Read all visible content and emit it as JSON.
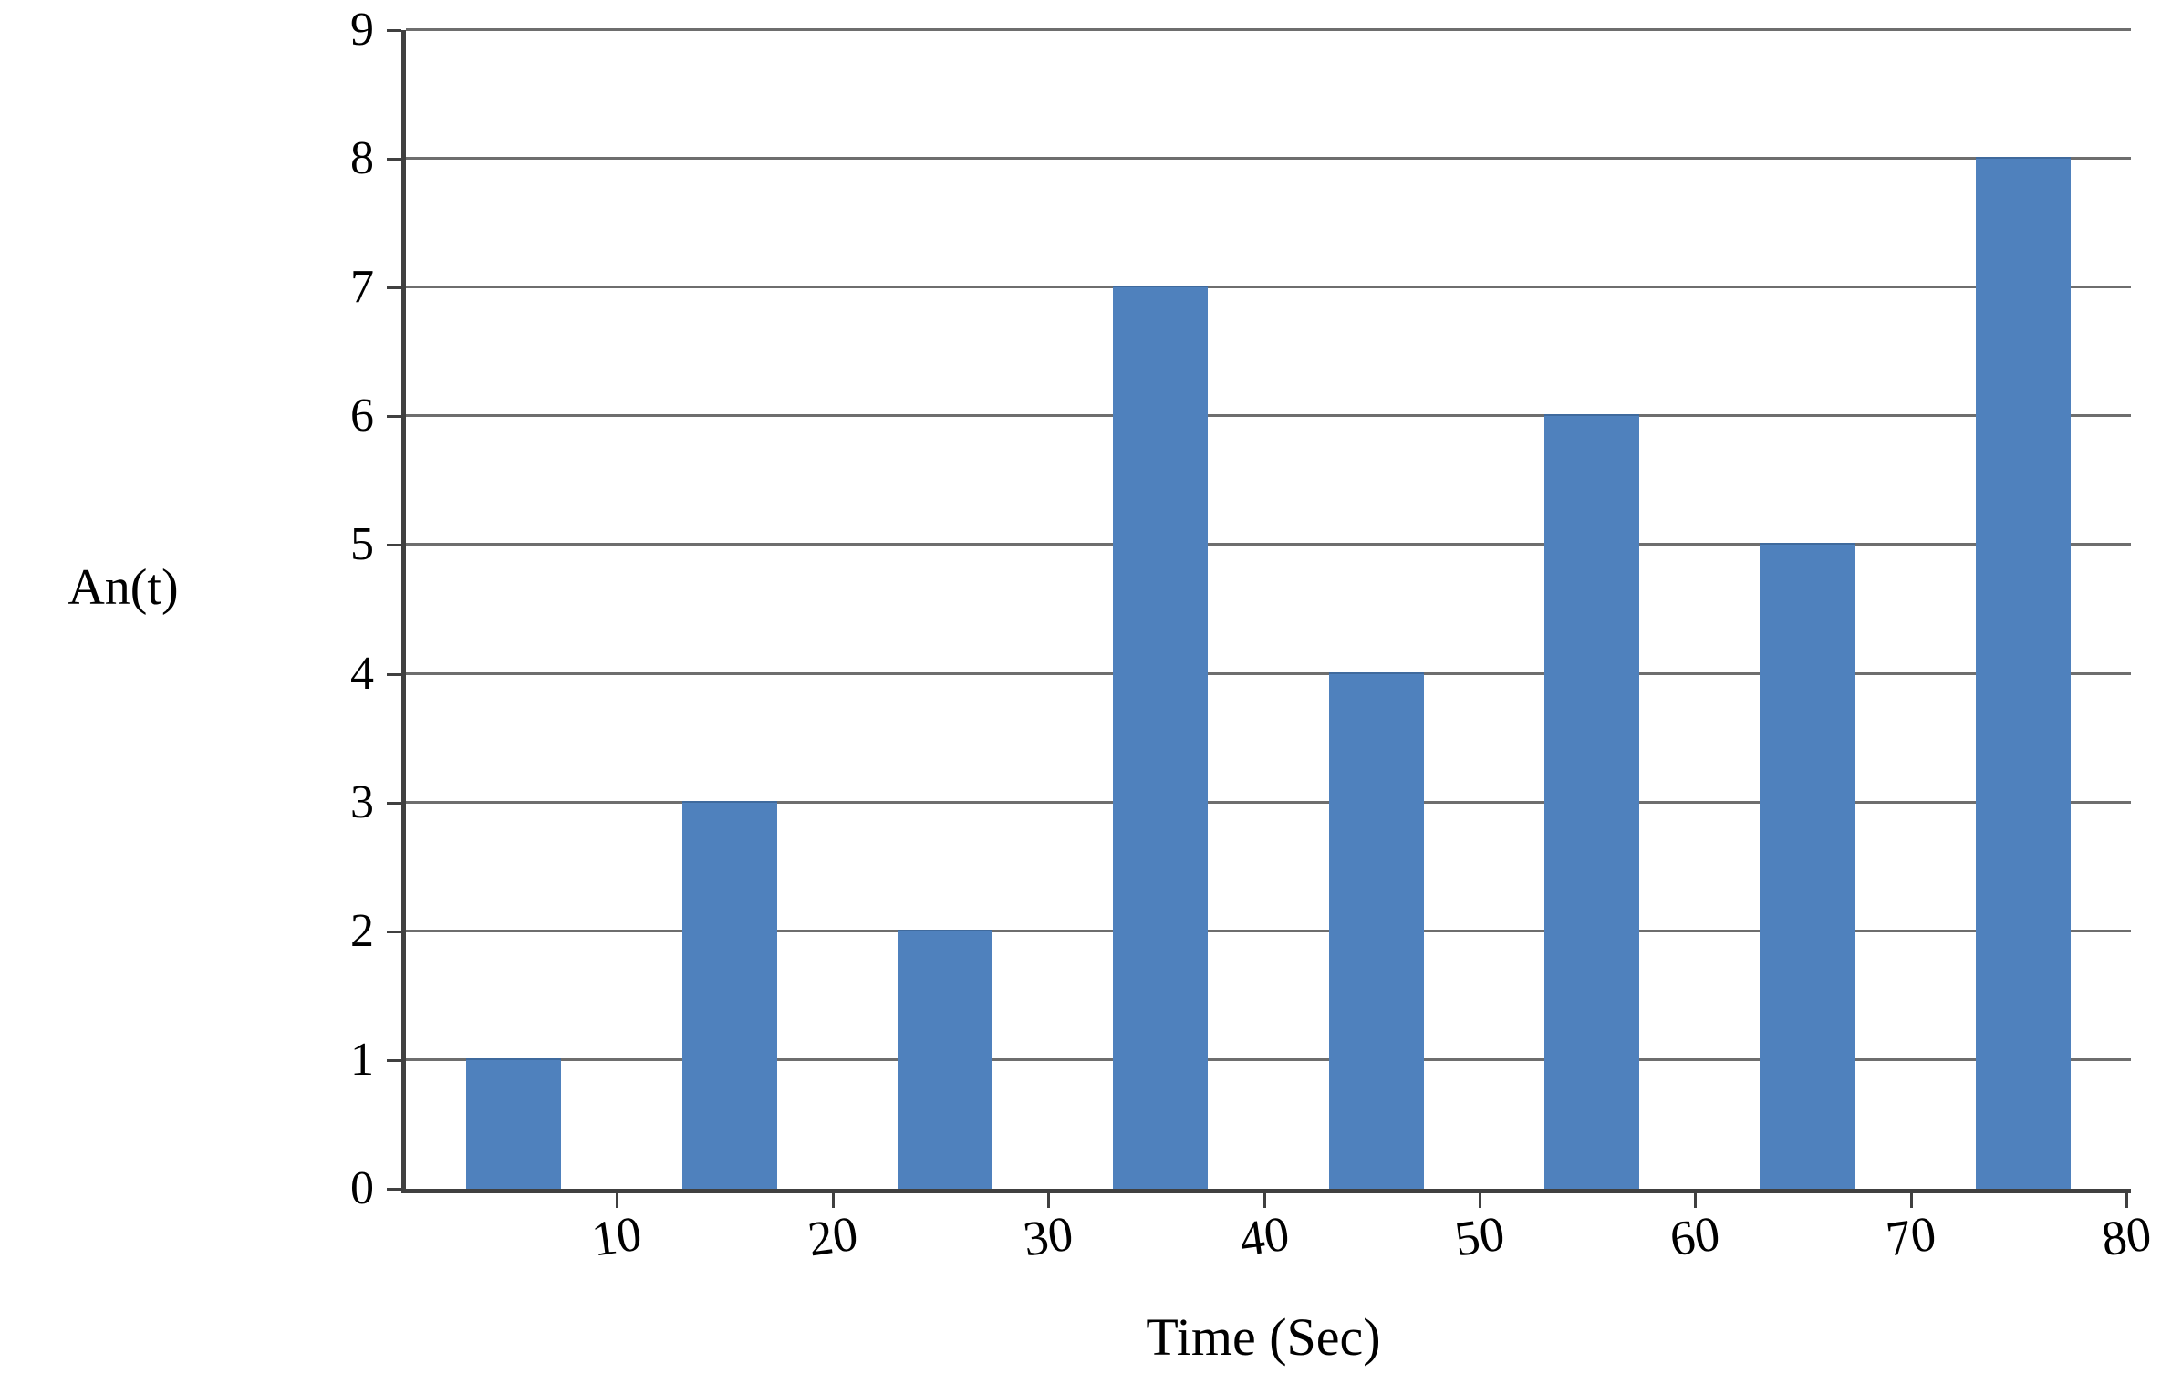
{
  "chart": {
    "colors": {
      "bar_fill": "#4f81bd",
      "bar_edge": "#3f6a9d",
      "gridline": "#6e6e6e",
      "axis": "#404040",
      "text": "#000000",
      "background": "#ffffff"
    }
  },
  "chart_data": {
    "type": "bar",
    "title": "",
    "xlabel": "Time (Sec)",
    "ylabel": "An(t)",
    "x": [
      5,
      15,
      25,
      35,
      45,
      55,
      65,
      75
    ],
    "values": [
      1,
      3,
      2,
      7,
      4,
      6,
      5,
      8
    ],
    "bar_width": 4.4,
    "xlim": [
      0,
      80
    ],
    "ylim": [
      0,
      9
    ],
    "x_tick_labels": [
      "10",
      "20",
      "30",
      "40",
      "50",
      "60",
      "70",
      "80"
    ],
    "x_ticks": [
      10,
      20,
      30,
      40,
      50,
      60,
      70,
      80
    ],
    "y_tick_labels": [
      "0",
      "1",
      "2",
      "3",
      "4",
      "5",
      "6",
      "7",
      "8",
      "9"
    ],
    "y_ticks": [
      0,
      1,
      2,
      3,
      4,
      5,
      6,
      7,
      8,
      9
    ],
    "grid": "horizontal",
    "legend": "none"
  }
}
